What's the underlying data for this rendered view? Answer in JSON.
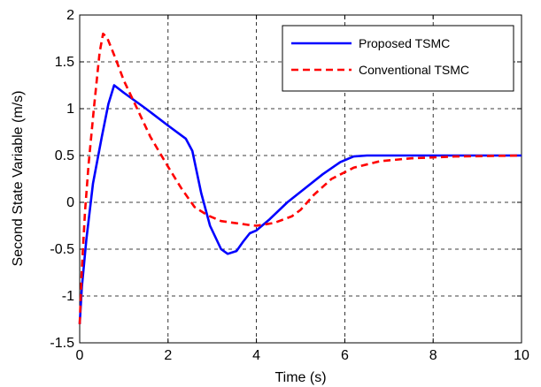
{
  "chart_data": {
    "type": "line",
    "xlabel": "Time (s)",
    "ylabel": "Second State Variable (m/s)",
    "xlim": [
      0,
      10
    ],
    "ylim": [
      -1.5,
      2
    ],
    "xticks": [
      0,
      2,
      4,
      6,
      8,
      10
    ],
    "yticks": [
      -1.5,
      -1,
      -0.5,
      0,
      0.5,
      1,
      1.5,
      2
    ],
    "xtick_labels": [
      "0",
      "2",
      "4",
      "6",
      "8",
      "10"
    ],
    "ytick_labels": [
      "-1.5",
      "-1",
      "-0.5",
      "0",
      "0.5",
      "1",
      "1.5",
      "2"
    ],
    "grid": true,
    "legend_position": "top-right",
    "series": [
      {
        "name": "Proposed TSMC",
        "color": "#0000ff",
        "style": "solid",
        "points": [
          [
            0,
            -1.3
          ],
          [
            0.05,
            -0.9
          ],
          [
            0.15,
            -0.4
          ],
          [
            0.3,
            0.2
          ],
          [
            0.5,
            0.7
          ],
          [
            0.65,
            1.05
          ],
          [
            0.78,
            1.25
          ],
          [
            1.0,
            1.17
          ],
          [
            1.5,
            1.0
          ],
          [
            2.0,
            0.82
          ],
          [
            2.4,
            0.68
          ],
          [
            2.55,
            0.55
          ],
          [
            2.75,
            0.1
          ],
          [
            2.95,
            -0.25
          ],
          [
            3.2,
            -0.5
          ],
          [
            3.35,
            -0.55
          ],
          [
            3.55,
            -0.52
          ],
          [
            3.7,
            -0.42
          ],
          [
            3.85,
            -0.33
          ],
          [
            4.0,
            -0.3
          ],
          [
            4.3,
            -0.18
          ],
          [
            4.7,
            0.0
          ],
          [
            5.1,
            0.15
          ],
          [
            5.5,
            0.3
          ],
          [
            5.9,
            0.43
          ],
          [
            6.2,
            0.49
          ],
          [
            6.5,
            0.5
          ],
          [
            7.0,
            0.5
          ],
          [
            8.0,
            0.5
          ],
          [
            10,
            0.5
          ]
        ]
      },
      {
        "name": "Conventional TSMC",
        "color": "#ff0000",
        "style": "dashed",
        "points": [
          [
            0,
            -1.3
          ],
          [
            0.05,
            -0.7
          ],
          [
            0.12,
            -0.1
          ],
          [
            0.2,
            0.4
          ],
          [
            0.32,
            1.0
          ],
          [
            0.45,
            1.6
          ],
          [
            0.53,
            1.8
          ],
          [
            0.62,
            1.76
          ],
          [
            0.8,
            1.55
          ],
          [
            1.0,
            1.3
          ],
          [
            1.3,
            1.0
          ],
          [
            1.6,
            0.7
          ],
          [
            2.0,
            0.38
          ],
          [
            2.3,
            0.15
          ],
          [
            2.6,
            -0.05
          ],
          [
            2.9,
            -0.14
          ],
          [
            3.2,
            -0.2
          ],
          [
            3.5,
            -0.22
          ],
          [
            3.8,
            -0.24
          ],
          [
            4.0,
            -0.25
          ],
          [
            4.4,
            -0.22
          ],
          [
            4.8,
            -0.15
          ],
          [
            5.0,
            -0.08
          ],
          [
            5.3,
            0.08
          ],
          [
            5.7,
            0.25
          ],
          [
            6.2,
            0.37
          ],
          [
            6.8,
            0.44
          ],
          [
            7.5,
            0.47
          ],
          [
            8.5,
            0.49
          ],
          [
            10,
            0.5
          ]
        ]
      }
    ]
  }
}
